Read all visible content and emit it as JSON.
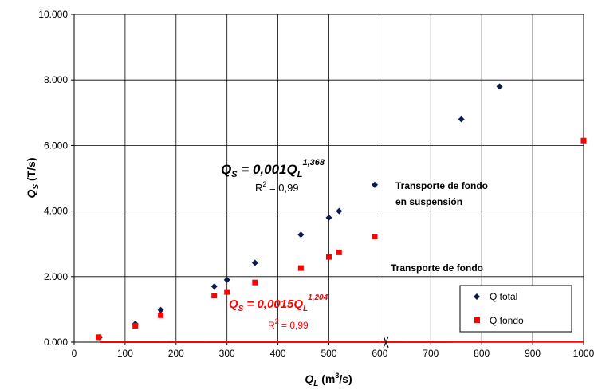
{
  "chart_data": {
    "type": "scatter",
    "x_axis": {
      "label_main": "Q",
      "label_sub": "L",
      "label_unit_pre": " (m",
      "label_unit_sup": "3",
      "label_unit_post": "/s)",
      "ticks": [
        "0",
        "100",
        "200",
        "300",
        "400",
        "500",
        "600",
        "700",
        "800",
        "900",
        "1000"
      ],
      "range": [
        0,
        1000
      ]
    },
    "y_axis": {
      "label_main": "Q",
      "label_sub": "S",
      "label_unit": " (T/s)",
      "ticks": [
        "0.000",
        "2.000",
        "4.000",
        "6.000",
        "8.000",
        "10.000"
      ],
      "range": [
        0,
        10000
      ]
    },
    "grid": true,
    "legend_position": "bottom-right",
    "series": [
      {
        "name": "Q total",
        "color": "#0a1a4a",
        "marker": "diamond",
        "x": [
          50,
          120,
          170,
          275,
          300,
          355,
          445,
          500,
          520,
          590,
          760,
          835
        ],
        "y": [
          150,
          560,
          980,
          1700,
          1900,
          2420,
          3280,
          3800,
          4000,
          4800,
          6800,
          7800
        ]
      },
      {
        "name": "Q fondo",
        "color": "#ff0000",
        "marker": "square",
        "x": [
          48,
          120,
          170,
          275,
          300,
          355,
          445,
          500,
          520,
          590,
          1000
        ],
        "y": [
          150,
          500,
          820,
          1420,
          1530,
          1820,
          2260,
          2600,
          2740,
          3220,
          6150
        ]
      }
    ],
    "trendlines": [
      {
        "series": "Q total",
        "coef": 0.001,
        "exp": 1.368,
        "color": "#000000",
        "x_range": [
          50,
          1000
        ]
      },
      {
        "series": "Q fondo",
        "coef": 0.0015,
        "exp": 1.204,
        "color": "#ff0000",
        "x_range": [
          50,
          1000
        ]
      }
    ],
    "annotations": {
      "eq_total": {
        "lhs": "Q",
        "lhs_sub": "S",
        "mid": " = 0,001Q",
        "rhs_sub": "L",
        "exp": "1,368",
        "r2_pre": "R",
        "r2_sup": "2",
        "r2_post": " = 0,99"
      },
      "eq_fondo": {
        "lhs": "Q",
        "lhs_sub": "S",
        "mid": " = 0,0015Q",
        "rhs_sub": "L",
        "exp": "1,204",
        "r2_pre": "R",
        "r2_sup": "2",
        "r2_post": " = 0,99"
      },
      "label_suspension_1": "Transporte de fondo",
      "label_suspension_2": "en suspensión",
      "label_fondo": "Transporte de fondo",
      "arrow_x": 612
    }
  }
}
